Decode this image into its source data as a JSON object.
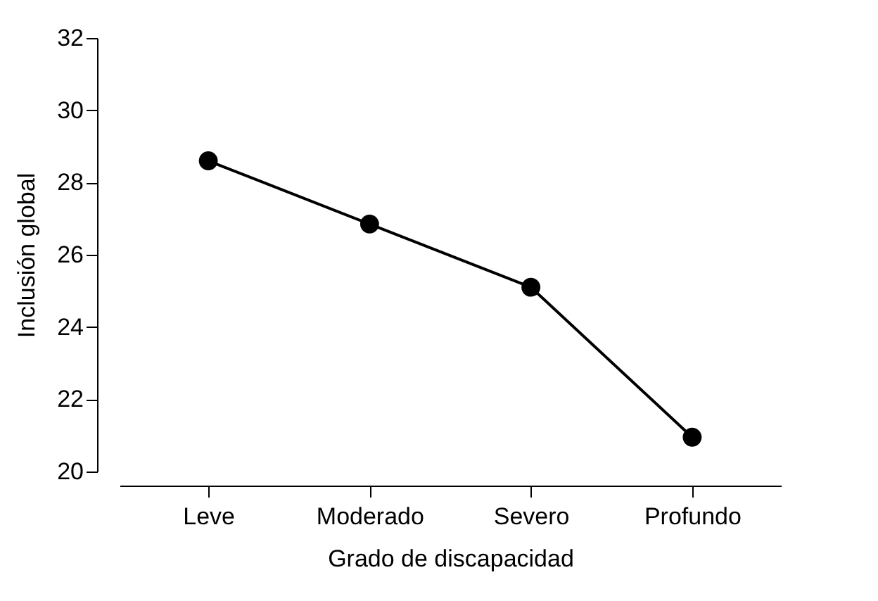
{
  "chart_data": {
    "type": "line",
    "xlabel": "Grado de discapacidad",
    "ylabel": "Inclusión global",
    "categories": [
      "Leve",
      "Moderado",
      "Severo",
      "Profundo"
    ],
    "series": [
      {
        "color": "#000000",
        "values": [
          28.6,
          26.85,
          25.1,
          20.95
        ]
      }
    ],
    "ylim": [
      20,
      32
    ],
    "yticks": [
      20,
      22,
      24,
      26,
      28,
      30,
      32
    ],
    "grid": false,
    "legend": false,
    "marker": "circle",
    "line_style": "solid"
  }
}
